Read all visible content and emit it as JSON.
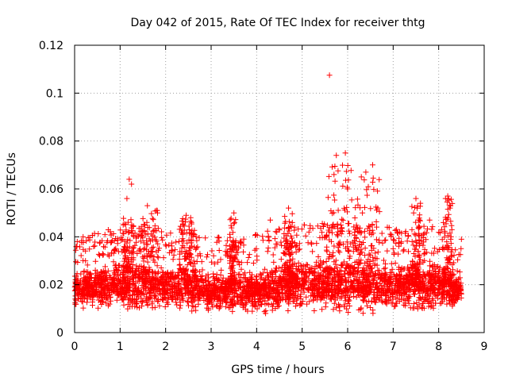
{
  "chart_data": {
    "type": "scatter",
    "title": "Day 042 of 2015, Rate Of TEC Index for receiver thtg",
    "xlabel": "GPS time / hours",
    "ylabel": "ROTI / TECUs",
    "xlim": [
      0,
      9
    ],
    "ylim": [
      0,
      0.12
    ],
    "xticks": [
      0,
      1,
      2,
      3,
      4,
      5,
      6,
      7,
      8,
      9
    ],
    "xtick_labels": [
      "0",
      "1",
      "2",
      "3",
      "4",
      "5",
      "6",
      "7",
      "8",
      "9"
    ],
    "yticks": [
      0,
      0.02,
      0.04,
      0.06,
      0.08,
      0.1,
      0.12
    ],
    "ytick_labels": [
      "0",
      "0.02",
      "0.04",
      "0.06",
      "0.08",
      "0.1",
      "0.12"
    ],
    "grid": true,
    "marker": "+",
    "color": "#ff0000",
    "series_name": "ROTI",
    "baseline": {
      "x_range": [
        0.0,
        8.5
      ],
      "envelope": [
        [
          0.0,
          0.009,
          0.027
        ],
        [
          0.5,
          0.008,
          0.03
        ],
        [
          1.0,
          0.008,
          0.032
        ],
        [
          1.5,
          0.007,
          0.033
        ],
        [
          2.0,
          0.008,
          0.03
        ],
        [
          2.5,
          0.008,
          0.03
        ],
        [
          3.0,
          0.006,
          0.028
        ],
        [
          3.5,
          0.007,
          0.028
        ],
        [
          4.0,
          0.006,
          0.029
        ],
        [
          4.5,
          0.007,
          0.032
        ],
        [
          5.0,
          0.006,
          0.033
        ],
        [
          5.5,
          0.007,
          0.034
        ],
        [
          6.0,
          0.006,
          0.034
        ],
        [
          6.5,
          0.007,
          0.033
        ],
        [
          7.0,
          0.006,
          0.032
        ],
        [
          7.5,
          0.006,
          0.033
        ],
        [
          8.0,
          0.007,
          0.032
        ],
        [
          8.5,
          0.01,
          0.026
        ]
      ]
    },
    "notable_points": [
      {
        "x": 5.6,
        "y": 0.1075
      },
      {
        "x": 5.95,
        "y": 0.075
      },
      {
        "x": 5.75,
        "y": 0.074
      },
      {
        "x": 6.55,
        "y": 0.07
      },
      {
        "x": 6.4,
        "y": 0.067
      },
      {
        "x": 6.3,
        "y": 0.065
      },
      {
        "x": 1.2,
        "y": 0.064
      },
      {
        "x": 1.25,
        "y": 0.062
      },
      {
        "x": 5.7,
        "y": 0.066
      },
      {
        "x": 6.0,
        "y": 0.06
      },
      {
        "x": 8.2,
        "y": 0.057
      },
      {
        "x": 8.15,
        "y": 0.056
      },
      {
        "x": 7.5,
        "y": 0.056
      },
      {
        "x": 1.15,
        "y": 0.056
      },
      {
        "x": 1.6,
        "y": 0.053
      },
      {
        "x": 1.8,
        "y": 0.051
      },
      {
        "x": 4.7,
        "y": 0.052
      },
      {
        "x": 3.5,
        "y": 0.05
      },
      {
        "x": 2.45,
        "y": 0.049
      },
      {
        "x": 2.55,
        "y": 0.048
      },
      {
        "x": 4.3,
        "y": 0.047
      },
      {
        "x": 7.8,
        "y": 0.047
      },
      {
        "x": 7.45,
        "y": 0.05
      },
      {
        "x": 8.5,
        "y": 0.039
      },
      {
        "x": 0.05,
        "y": 0.036
      }
    ],
    "clusters": [
      {
        "x": [
          1.05,
          1.3
        ],
        "y": [
          0.025,
          0.048
        ]
      },
      {
        "x": [
          1.45,
          1.85
        ],
        "y": [
          0.025,
          0.052
        ]
      },
      {
        "x": [
          2.3,
          2.65
        ],
        "y": [
          0.025,
          0.049
        ]
      },
      {
        "x": [
          3.4,
          3.55
        ],
        "y": [
          0.02,
          0.048
        ]
      },
      {
        "x": [
          4.6,
          4.8
        ],
        "y": [
          0.02,
          0.05
        ]
      },
      {
        "x": [
          5.5,
          6.1
        ],
        "y": [
          0.025,
          0.07
        ]
      },
      {
        "x": [
          6.15,
          6.7
        ],
        "y": [
          0.025,
          0.066
        ]
      },
      {
        "x": [
          7.4,
          7.6
        ],
        "y": [
          0.02,
          0.055
        ]
      },
      {
        "x": [
          8.1,
          8.3
        ],
        "y": [
          0.02,
          0.056
        ]
      }
    ]
  }
}
